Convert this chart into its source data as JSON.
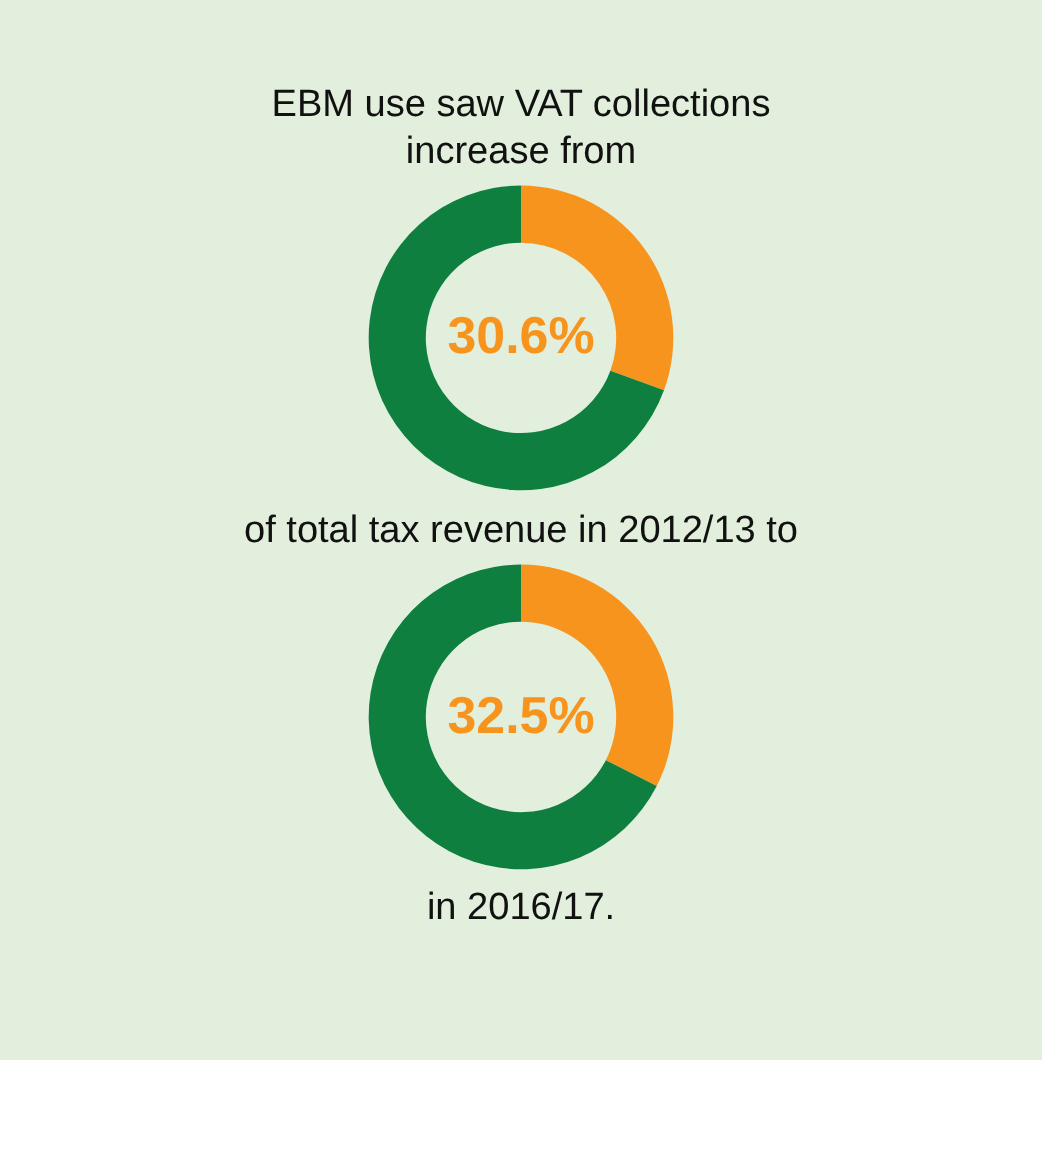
{
  "chart_data": [
    {
      "type": "donut",
      "title": "EBM use saw VAT collections increase from",
      "categories": [
        null,
        null
      ],
      "values": [
        30.6,
        69.4
      ],
      "colors": [
        "#f7941d",
        "#0e7f3e"
      ],
      "annotations": [
        "30.6%"
      ]
    },
    {
      "type": "donut",
      "title": "of total tax revenue in 2012/13 to",
      "categories": [
        null,
        null
      ],
      "values": [
        32.5,
        67.5
      ],
      "colors": [
        "#f7941d",
        "#0e7f3e"
      ],
      "annotations": [
        "32.5%",
        "in 2016/17."
      ]
    }
  ]
}
